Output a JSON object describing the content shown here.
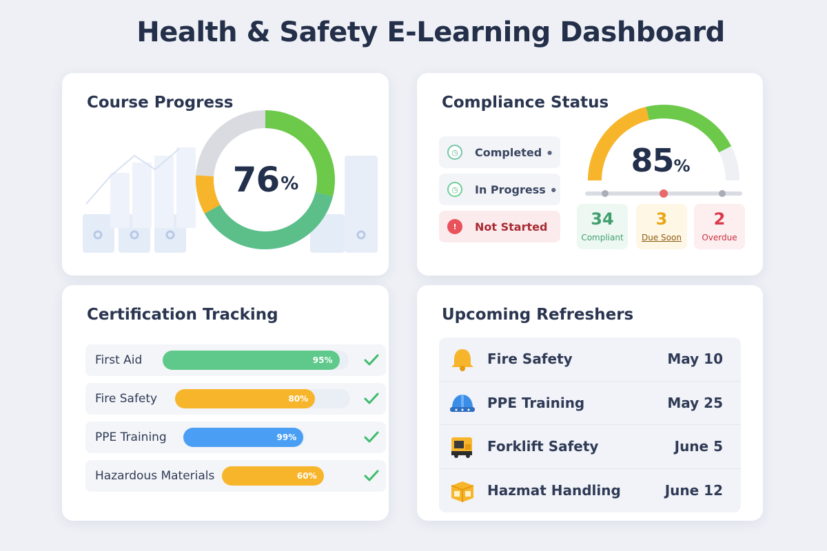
{
  "page": {
    "title": "Health & Safety E-Learning Dashboard"
  },
  "course_progress": {
    "title": "Course Progress",
    "percent_value": 76,
    "percent_number": "76",
    "percent_sign": "%",
    "colors": {
      "green": "#6cc94a",
      "teal": "#5cbf8a",
      "orange": "#f7b52b",
      "gray": "#d9dbe0"
    }
  },
  "compliance": {
    "title": "Compliance Status",
    "statuses": [
      {
        "label": "Completed",
        "icon": "clock-icon"
      },
      {
        "label": "In Progress",
        "icon": "clock-icon"
      },
      {
        "label": "Not Started",
        "icon": "alert-icon"
      }
    ],
    "gauge_value": 85,
    "gauge_number": "85",
    "gauge_sign": "%",
    "stats": [
      {
        "number": "34",
        "label": "Compliant",
        "color": "#3f9f6e"
      },
      {
        "number": "3",
        "label": "Due Soon",
        "color": "#e8a615"
      },
      {
        "number": "2",
        "label": "Overdue",
        "color": "#d9394a"
      }
    ]
  },
  "certification": {
    "title": "Certification Tracking",
    "items": [
      {
        "name": "First Aid",
        "percent": 95,
        "label": "95%",
        "color": "#5ec98a"
      },
      {
        "name": "Fire Safety",
        "percent": 80,
        "label": "80%",
        "color": "#f7b52b"
      },
      {
        "name": "PPE Training",
        "percent": 99,
        "label": "99%",
        "color": "#4a9ff5"
      },
      {
        "name": "Hazardous Materials",
        "percent": 60,
        "label": "60%",
        "color": "#f7b52b"
      }
    ],
    "check_color": "#3dbb6a"
  },
  "refreshers": {
    "title": "Upcoming Refreshers",
    "items": [
      {
        "name": "Fire Safety",
        "date": "May 10",
        "icon": "bell-icon"
      },
      {
        "name": "PPE Training",
        "date": "May 25",
        "icon": "hard-hat-icon"
      },
      {
        "name": "Forklift Safety",
        "date": "June 5",
        "icon": "forklift-icon"
      },
      {
        "name": "Hazmat Handling",
        "date": "June 12",
        "icon": "hazmat-box-icon"
      }
    ]
  }
}
